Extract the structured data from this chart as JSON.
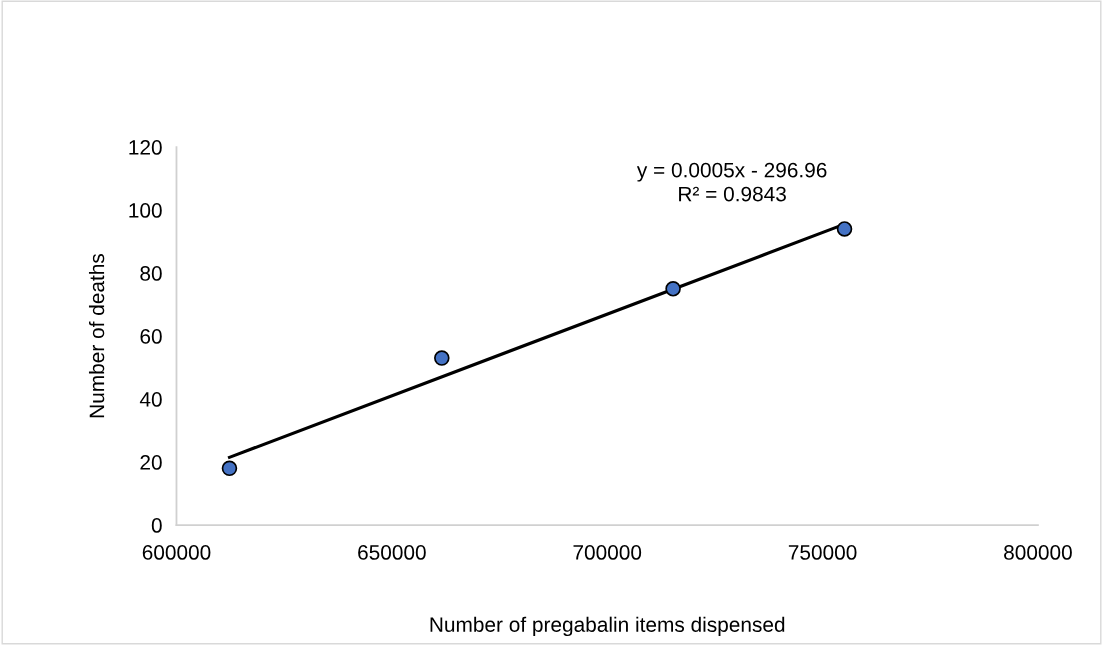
{
  "chart_data": {
    "type": "scatter",
    "xlabel": "Number of pregabalin items dispensed",
    "ylabel": "Number of deaths",
    "x": [
      612300,
      661600,
      715300,
      755100
    ],
    "series": [
      {
        "color": "#4472c4",
        "values": [
          18,
          53,
          75,
          94
        ],
        "marker": "circle"
      },
      {
        "type": "line",
        "color": "#000000",
        "x": [
          612300,
          755100
        ],
        "values": [
          21.5,
          95.5
        ],
        "marker": "none",
        "line_style": "solid"
      }
    ],
    "xlim": [
      600000,
      800000
    ],
    "xticks": [
      600000,
      650000,
      700000,
      750000,
      800000
    ],
    "ylim": [
      0,
      120
    ],
    "yticks": [
      0,
      20,
      40,
      60,
      80,
      100,
      120
    ],
    "annotations": [
      "y = 0.0005x - 296.96\nR² = 0.9843"
    ],
    "grid": false,
    "legend": false
  }
}
